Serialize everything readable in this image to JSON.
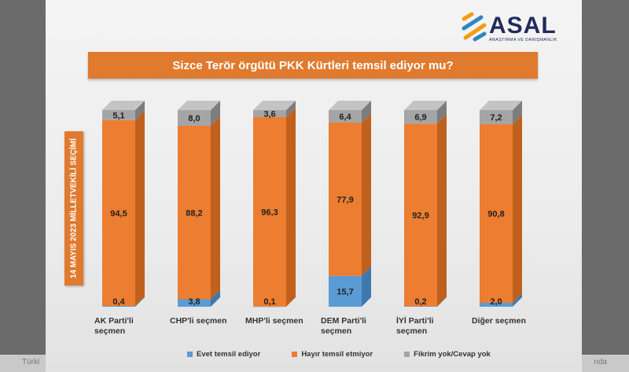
{
  "logo": {
    "name": "ASAL",
    "tagline": "ARAŞTIRMA VE DANIŞMANLIK"
  },
  "side_label": "14 MAYIS 2023 MİLLETVEKİLİ SEÇİMİ",
  "background_text": {
    "left": "Türki",
    "right": "nda"
  },
  "chart_data": {
    "type": "bar",
    "stacked": true,
    "title": "Sizce Terör örgütü PKK Kürtleri temsil ediyor mu?",
    "categories": [
      "AK Parti'li seçmen",
      "CHP'li seçmen",
      "MHP'li seçmen",
      "DEM Parti'li seçmen",
      "İYİ Parti'li seçmen",
      "Diğer seçmen"
    ],
    "series": [
      {
        "name": "Evet temsil ediyor",
        "color": "#5b9bd5",
        "values": [
          0.4,
          3.8,
          0.1,
          15.7,
          0.2,
          2.0
        ],
        "labels": [
          "0,4",
          "3,8",
          "0,1",
          "15,7",
          "0,2",
          "2,0"
        ]
      },
      {
        "name": "Hayır temsil etmiyor",
        "color": "#ed7d31",
        "values": [
          94.5,
          88.2,
          96.3,
          77.9,
          92.9,
          90.8
        ],
        "labels": [
          "94,5",
          "88,2",
          "96,3",
          "77,9",
          "92,9",
          "90,8"
        ]
      },
      {
        "name": "Fikrim yok/Cevap yok",
        "color": "#a5a5a5",
        "values": [
          5.1,
          8.0,
          3.6,
          6.4,
          6.9,
          7.2
        ],
        "labels": [
          "5,1",
          "8,0",
          "3,6",
          "6,4",
          "6,9",
          "7,2"
        ]
      }
    ],
    "ylim": [
      0,
      100
    ],
    "legend_position": "bottom"
  }
}
